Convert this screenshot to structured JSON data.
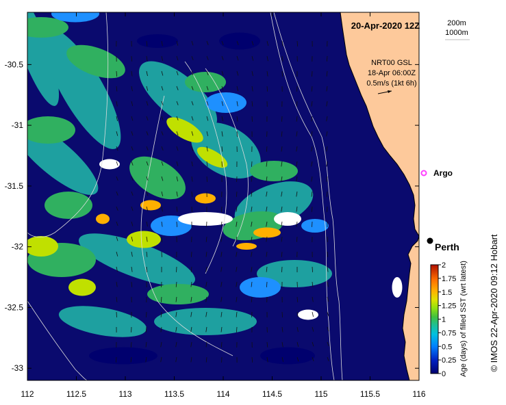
{
  "title": "20-Apr-2020 12Z",
  "isobath_labels": [
    "200m",
    "1000m"
  ],
  "current_info": {
    "line1": "NRT00 GSL",
    "line2": "18-Apr 06:00Z",
    "line3": "0.5m/s (1kt 6h)"
  },
  "argo_label": "Argo",
  "city_label": "Perth",
  "credit": "©  IMOS 22-Apr-2020 09:12 Hobart",
  "colorbar": {
    "label": "Age (days) of filled SST (wrt latest)",
    "ticks": [
      "0",
      "0.25",
      "0.5",
      "0.75",
      "1",
      "1.25",
      "1.5",
      "1.75",
      "2"
    ],
    "colors": [
      "#00006e",
      "#0040ff",
      "#00b0ff",
      "#20d0c0",
      "#30c060",
      "#a0e000",
      "#ffe000",
      "#ff9000",
      "#c02000"
    ]
  },
  "x_axis": {
    "ticks": [
      "112",
      "112.5",
      "113",
      "113.5",
      "114",
      "114.5",
      "115",
      "115.5",
      "116"
    ],
    "range": [
      112,
      116
    ]
  },
  "y_axis": {
    "ticks": [
      "-30.5",
      "-31",
      "-31.5",
      "-32",
      "-32.5",
      "-33"
    ],
    "range": [
      -33.1,
      -30.07
    ]
  },
  "colors": {
    "ocean": "#0a0a6e",
    "land": "#fdc99b",
    "isobath": "#dddddd",
    "argo": "#ff40ff"
  }
}
